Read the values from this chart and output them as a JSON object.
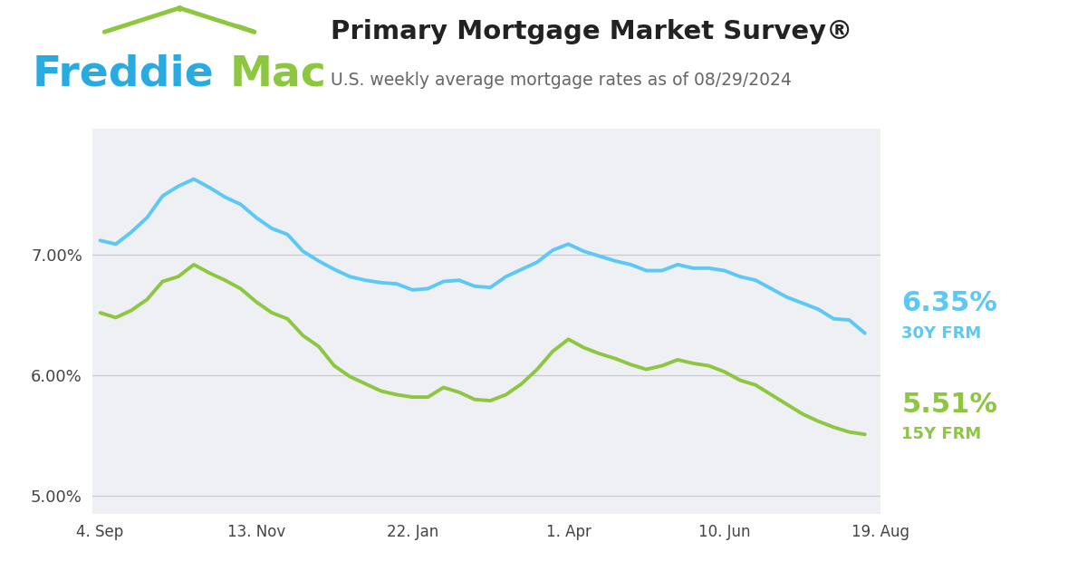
{
  "title": "Primary Mortgage Market Survey®",
  "subtitle": "U.S. weekly average mortgage rates as of 08/29/2024",
  "title_color": "#222222",
  "subtitle_color": "#666666",
  "freddie_blue": "#29abe2",
  "freddie_green": "#8dc63f",
  "line_30y_color": "#5bc8f5",
  "line_15y_color": "#8dc63f",
  "plot_bg": "#eef0f4",
  "rate_30y_label": "6.35%",
  "rate_15y_label": "5.51%",
  "label_30y": "30Y FRM",
  "label_15y": "15Y FRM",
  "ylim": [
    4.85,
    8.05
  ],
  "yticks": [
    5.0,
    6.0,
    7.0
  ],
  "ytick_labels": [
    "5.00%",
    "6.00%",
    "7.00%"
  ],
  "xtick_labels": [
    "4. Sep",
    "13. Nov",
    "22. Jan",
    "1. Apr",
    "10. Jun",
    "19. Aug"
  ],
  "x_positions": [
    0,
    10,
    20,
    30,
    40,
    50
  ],
  "data_30y": [
    7.12,
    7.09,
    7.19,
    7.31,
    7.49,
    7.57,
    7.63,
    7.56,
    7.48,
    7.42,
    7.31,
    7.22,
    7.17,
    7.03,
    6.95,
    6.88,
    6.82,
    6.79,
    6.77,
    6.76,
    6.71,
    6.72,
    6.78,
    6.79,
    6.74,
    6.73,
    6.82,
    6.88,
    6.94,
    7.04,
    7.09,
    7.03,
    6.99,
    6.95,
    6.92,
    6.87,
    6.87,
    6.92,
    6.89,
    6.89,
    6.87,
    6.82,
    6.79,
    6.72,
    6.65,
    6.6,
    6.55,
    6.47,
    6.46,
    6.35
  ],
  "data_15y": [
    6.52,
    6.48,
    6.54,
    6.63,
    6.78,
    6.82,
    6.92,
    6.85,
    6.79,
    6.72,
    6.61,
    6.52,
    6.47,
    6.33,
    6.24,
    6.08,
    5.99,
    5.93,
    5.87,
    5.84,
    5.82,
    5.82,
    5.9,
    5.86,
    5.8,
    5.79,
    5.84,
    5.93,
    6.05,
    6.2,
    6.3,
    6.23,
    6.18,
    6.14,
    6.09,
    6.05,
    6.08,
    6.13,
    6.1,
    6.08,
    6.03,
    5.96,
    5.92,
    5.84,
    5.76,
    5.68,
    5.62,
    5.57,
    5.53,
    5.51
  ]
}
